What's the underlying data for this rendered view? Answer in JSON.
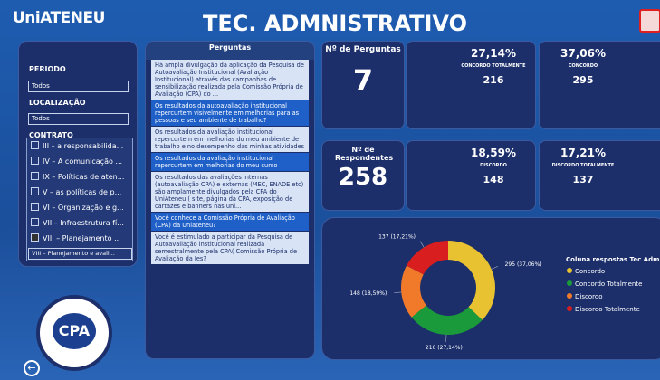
{
  "header": {
    "logo": "UniATENEU",
    "title": "TEC. ADMNISTRATIVO"
  },
  "filters": {
    "periodo_label": "PERIODO",
    "periodo_value": "Todos",
    "localizacao_label": "LOCALIZAÇÃO",
    "localizacao_value": "Todos",
    "contrato_label": "CONTRATO",
    "contrato_items": [
      "III – a responsabilida...",
      "IV – A comunicação ...",
      "IX – Políticas de aten...",
      "V – as políticas de p...",
      "VI – Organização e g...",
      "VII – Infraestrutura fí...",
      "VIII – Planejamento ..."
    ],
    "contrato_checked": 6,
    "contrato_selected": "VIII – Planejamento e avali..."
  },
  "questions": {
    "title": "Perguntas",
    "items": [
      "Há ampla divulgação da aplicação da Pesquisa de Autoavaliação Institucional (Avaliação Institucional) através das campanhas de sensibilização realizada pela Comissão Própria de Avaliação (CPA) do ...",
      "Os resultados da autoavaliação institucional repercurtem visivelmente em melhorias para as pessoas e seu ambiente de trabalho?",
      "Os resultados da avaliação institucional repercurtem em melhorias do meu ambiente de trabalho e no desempenho das minhas atividades",
      "Os resultados da avaliação institucional repercurtem em melhorias do meu curso",
      "Os resultados das avaliações internas (autoavaliação CPA) e externas (MEC, ENADE etc) são amplamente divulgados pela CPA do UniAteneu ( site, página da CPA, exposição de cartazes e banners nas uni...",
      "Você conhece a Comissão Própria de Avaliação (CPA) da Uniateneu?",
      "Você é estimulado a participar  da Pesquisa de Autoavaliação institucional realizada semestralmente pela CPA( Comissão Própria de Avaliação da Ies?"
    ],
    "highlighted": [
      1,
      3,
      5
    ]
  },
  "cards": {
    "perguntas": {
      "label": "Nº de Perguntas",
      "value": 7
    },
    "respondentes": {
      "label": "Nº de Respondentes",
      "value": 258
    },
    "responses": [
      {
        "percent": "27,14%",
        "label": "CONCORDO TOTALMENTE",
        "count": 216,
        "color": "#4cae3a"
      },
      {
        "percent": "37,06%",
        "label": "CONCORDO",
        "count": 295,
        "color": "#f2d22a"
      },
      {
        "percent": "18,59%",
        "label": "DISCORDO",
        "count": 148,
        "color": "#f08a24"
      },
      {
        "percent": "17,21%",
        "label": "DISCORDO TOTALMENTE",
        "count": 137,
        "color": "#e0201e"
      }
    ]
  },
  "cpa_logo": "CPA",
  "chart_data": {
    "type": "donut",
    "title": "Coluna respostas Tec Adm",
    "categories": [
      "Concordo",
      "Concordo Totalmente",
      "Discordo",
      "Discordo Totalmente"
    ],
    "values": [
      295,
      216,
      148,
      137
    ],
    "value_labels": [
      "295 (37,06%)",
      "216 (27,14%)",
      "148 (18,59%)",
      "137 (17,21%)"
    ],
    "colors": [
      "#e8c230",
      "#1a9a3a",
      "#f07a2a",
      "#d81e1e"
    ]
  }
}
